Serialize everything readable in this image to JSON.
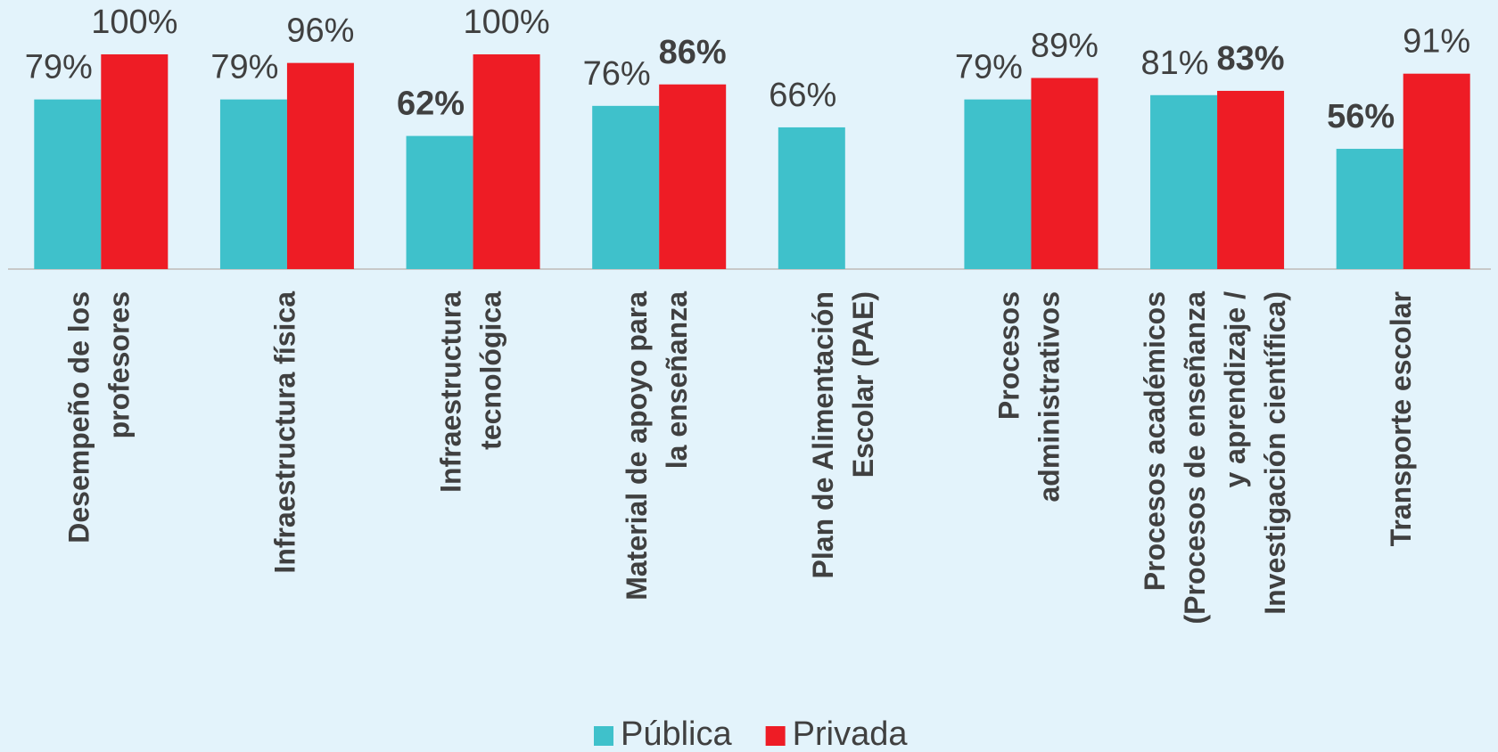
{
  "chart_data": {
    "type": "bar",
    "categories": [
      [
        "Desempeño de los",
        "profesores"
      ],
      [
        "Infraestructura física"
      ],
      [
        "Infraestructura",
        "tecnológica"
      ],
      [
        "Material de apoyo para",
        "la enseñanza"
      ],
      [
        "Plan de Alimentación",
        "Escolar (PAE)"
      ],
      [
        "Procesos",
        "administrativos"
      ],
      [
        "Procesos académicos",
        "(Procesos de enseñanza",
        "y aprendizaje /",
        "Investigación científica)"
      ],
      [
        "Transporte escolar"
      ]
    ],
    "series": [
      {
        "name": "Pública",
        "color": "#3fc1cb",
        "values": [
          79,
          79,
          62,
          76,
          66,
          79,
          81,
          56
        ],
        "value_labels": [
          "79%",
          "79%",
          "62%",
          "76%",
          "66%",
          "79%",
          "81%",
          "56%"
        ],
        "label_bold": [
          false,
          false,
          true,
          false,
          false,
          false,
          false,
          true
        ]
      },
      {
        "name": "Privada",
        "color": "#ee1c25",
        "values": [
          100,
          96,
          100,
          86,
          null,
          89,
          83,
          91
        ],
        "value_labels": [
          "100%",
          "96%",
          "100%",
          "86%",
          null,
          "89%",
          "83%",
          "91%"
        ],
        "label_bold": [
          false,
          false,
          false,
          true,
          false,
          false,
          true,
          false
        ]
      }
    ],
    "ylim": [
      0,
      100
    ],
    "legend": "bottom"
  }
}
